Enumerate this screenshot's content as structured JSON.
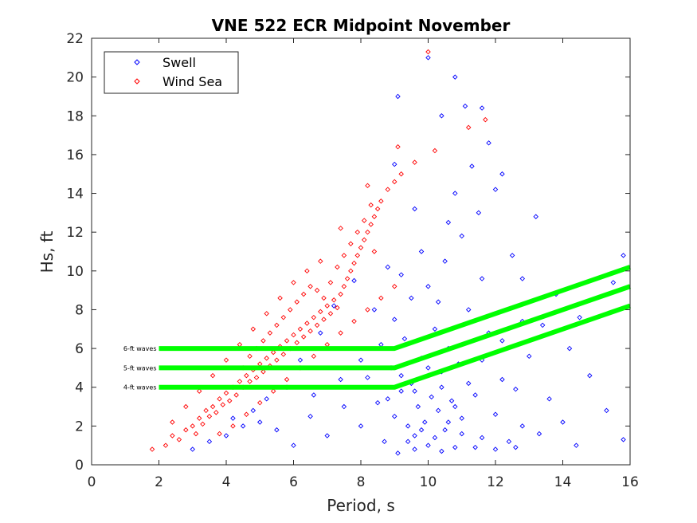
{
  "chart_data": {
    "type": "scatter",
    "title": "VNE 522 ECR Midpoint November",
    "xlabel": "Period, s",
    "ylabel": "Hs, ft",
    "xlim": [
      0,
      16
    ],
    "ylim": [
      0,
      22
    ],
    "xticks": [
      "0",
      "2",
      "4",
      "6",
      "8",
      "10",
      "12",
      "14",
      "16"
    ],
    "yticks": [
      "0",
      "2",
      "4",
      "6",
      "8",
      "10",
      "12",
      "14",
      "16",
      "18",
      "20",
      "22"
    ],
    "legend": {
      "placement": "top-left",
      "entries": [
        {
          "name": "Swell",
          "color": "#0000ff"
        },
        {
          "name": "Wind Sea",
          "color": "#ff0000"
        }
      ]
    },
    "series": [
      {
        "name": "Swell",
        "color": "#0000ff",
        "marker": "diamond",
        "points": [
          [
            3.0,
            0.8
          ],
          [
            3.5,
            1.2
          ],
          [
            4.0,
            1.5
          ],
          [
            4.5,
            2.0
          ],
          [
            5.0,
            2.2
          ],
          [
            5.5,
            1.8
          ],
          [
            6.0,
            1.0
          ],
          [
            6.5,
            2.5
          ],
          [
            7.0,
            1.5
          ],
          [
            7.5,
            3.0
          ],
          [
            8.0,
            2.0
          ],
          [
            8.2,
            4.5
          ],
          [
            8.5,
            3.2
          ],
          [
            8.7,
            1.2
          ],
          [
            8.9,
            5.0
          ],
          [
            9.0,
            2.5
          ],
          [
            9.1,
            0.6
          ],
          [
            9.2,
            3.8
          ],
          [
            9.3,
            6.5
          ],
          [
            9.4,
            2.0
          ],
          [
            9.5,
            4.2
          ],
          [
            9.6,
            1.5
          ],
          [
            9.7,
            3.0
          ],
          [
            9.8,
            5.5
          ],
          [
            9.9,
            2.2
          ],
          [
            10.0,
            1.0
          ],
          [
            10.1,
            3.5
          ],
          [
            10.2,
            7.0
          ],
          [
            10.3,
            2.8
          ],
          [
            10.4,
            4.8
          ],
          [
            10.5,
            1.8
          ],
          [
            10.6,
            6.0
          ],
          [
            10.7,
            3.3
          ],
          [
            10.8,
            0.9
          ],
          [
            10.9,
            5.2
          ],
          [
            11.0,
            2.4
          ],
          [
            11.2,
            8.0
          ],
          [
            11.4,
            3.6
          ],
          [
            11.6,
            1.4
          ],
          [
            11.8,
            6.8
          ],
          [
            12.0,
            2.6
          ],
          [
            12.2,
            4.4
          ],
          [
            12.4,
            1.2
          ],
          [
            12.6,
            3.9
          ],
          [
            12.8,
            2.0
          ],
          [
            13.0,
            5.6
          ],
          [
            13.3,
            1.6
          ],
          [
            13.6,
            3.4
          ],
          [
            14.0,
            2.2
          ],
          [
            14.4,
            1.0
          ],
          [
            14.8,
            4.6
          ],
          [
            15.3,
            2.8
          ],
          [
            15.8,
            1.3
          ],
          [
            8.6,
            6.2
          ],
          [
            9.0,
            7.5
          ],
          [
            9.5,
            8.6
          ],
          [
            10.0,
            9.2
          ],
          [
            10.5,
            10.5
          ],
          [
            11.0,
            11.8
          ],
          [
            11.5,
            13.0
          ],
          [
            12.0,
            14.2
          ],
          [
            8.4,
            8.0
          ],
          [
            9.2,
            9.8
          ],
          [
            9.8,
            11.0
          ],
          [
            10.6,
            12.5
          ],
          [
            11.3,
            15.4
          ],
          [
            11.8,
            16.6
          ],
          [
            12.2,
            15.0
          ],
          [
            9.6,
            13.2
          ],
          [
            10.8,
            14.0
          ],
          [
            9.0,
            15.5
          ],
          [
            8.8,
            10.2
          ],
          [
            10.3,
            8.4
          ],
          [
            11.6,
            9.6
          ],
          [
            12.5,
            10.8
          ],
          [
            13.2,
            12.8
          ],
          [
            13.8,
            8.8
          ],
          [
            14.5,
            7.6
          ],
          [
            15.5,
            9.4
          ],
          [
            15.8,
            10.8
          ],
          [
            12.8,
            9.6
          ],
          [
            13.4,
            7.2
          ],
          [
            14.2,
            6.0
          ],
          [
            11.1,
            18.5
          ],
          [
            11.6,
            18.4
          ],
          [
            10.8,
            20.0
          ],
          [
            10.0,
            21.0
          ],
          [
            9.1,
            19.0
          ],
          [
            10.4,
            18.0
          ],
          [
            7.8,
            9.5
          ],
          [
            7.2,
            8.2
          ],
          [
            6.8,
            6.8
          ],
          [
            6.2,
            5.4
          ],
          [
            5.8,
            4.0
          ],
          [
            5.2,
            3.4
          ],
          [
            4.8,
            2.8
          ],
          [
            4.2,
            2.4
          ],
          [
            6.6,
            3.6
          ],
          [
            7.4,
            4.4
          ],
          [
            8.0,
            5.4
          ],
          [
            9.4,
            1.2
          ],
          [
            9.8,
            1.8
          ],
          [
            10.2,
            1.4
          ],
          [
            10.6,
            2.2
          ],
          [
            11.0,
            1.6
          ],
          [
            9.6,
            0.8
          ],
          [
            10.4,
            0.7
          ],
          [
            11.4,
            0.9
          ],
          [
            12.0,
            0.8
          ],
          [
            12.6,
            0.9
          ],
          [
            8.8,
            3.4
          ],
          [
            9.2,
            4.6
          ],
          [
            9.6,
            3.8
          ],
          [
            10.0,
            5.0
          ],
          [
            10.4,
            4.0
          ],
          [
            10.8,
            3.0
          ],
          [
            11.2,
            4.2
          ],
          [
            11.6,
            5.4
          ],
          [
            12.2,
            6.4
          ],
          [
            12.8,
            7.4
          ]
        ]
      },
      {
        "name": "Wind Sea",
        "color": "#ff0000",
        "marker": "diamond",
        "points": [
          [
            1.8,
            0.8
          ],
          [
            2.2,
            1.0
          ],
          [
            2.4,
            1.5
          ],
          [
            2.6,
            1.3
          ],
          [
            2.8,
            1.8
          ],
          [
            3.0,
            2.0
          ],
          [
            3.1,
            1.6
          ],
          [
            3.2,
            2.4
          ],
          [
            3.3,
            2.1
          ],
          [
            3.4,
            2.8
          ],
          [
            3.5,
            2.5
          ],
          [
            3.6,
            3.0
          ],
          [
            3.7,
            2.7
          ],
          [
            3.8,
            3.4
          ],
          [
            3.9,
            3.1
          ],
          [
            4.0,
            3.7
          ],
          [
            4.1,
            3.3
          ],
          [
            4.2,
            4.0
          ],
          [
            4.3,
            3.6
          ],
          [
            4.4,
            4.3
          ],
          [
            4.5,
            4.0
          ],
          [
            4.6,
            4.6
          ],
          [
            4.7,
            4.3
          ],
          [
            4.8,
            4.9
          ],
          [
            4.9,
            4.5
          ],
          [
            5.0,
            5.2
          ],
          [
            5.1,
            4.8
          ],
          [
            5.2,
            5.5
          ],
          [
            5.3,
            5.1
          ],
          [
            5.4,
            5.8
          ],
          [
            5.5,
            5.4
          ],
          [
            5.6,
            6.1
          ],
          [
            5.7,
            5.7
          ],
          [
            5.8,
            6.4
          ],
          [
            5.9,
            6.0
          ],
          [
            6.0,
            6.7
          ],
          [
            6.1,
            6.3
          ],
          [
            6.2,
            7.0
          ],
          [
            6.3,
            6.6
          ],
          [
            6.4,
            7.3
          ],
          [
            6.5,
            6.9
          ],
          [
            6.6,
            7.6
          ],
          [
            6.7,
            7.2
          ],
          [
            6.8,
            7.9
          ],
          [
            6.9,
            7.5
          ],
          [
            7.0,
            8.2
          ],
          [
            7.1,
            7.8
          ],
          [
            7.2,
            8.5
          ],
          [
            7.3,
            8.1
          ],
          [
            7.4,
            8.8
          ],
          [
            7.5,
            9.2
          ],
          [
            7.6,
            9.6
          ],
          [
            7.7,
            10.0
          ],
          [
            7.8,
            10.4
          ],
          [
            7.9,
            10.8
          ],
          [
            8.0,
            11.2
          ],
          [
            8.1,
            11.6
          ],
          [
            8.2,
            12.0
          ],
          [
            8.3,
            12.4
          ],
          [
            8.4,
            12.8
          ],
          [
            8.5,
            13.2
          ],
          [
            8.6,
            13.6
          ],
          [
            8.8,
            14.2
          ],
          [
            9.0,
            14.6
          ],
          [
            9.2,
            15.0
          ],
          [
            9.6,
            15.6
          ],
          [
            10.2,
            16.2
          ],
          [
            11.2,
            17.4
          ],
          [
            11.7,
            17.8
          ],
          [
            10.0,
            21.3
          ],
          [
            9.1,
            16.4
          ],
          [
            8.2,
            14.4
          ],
          [
            7.4,
            12.2
          ],
          [
            6.8,
            10.5
          ],
          [
            6.4,
            10.0
          ],
          [
            6.0,
            9.4
          ],
          [
            5.6,
            8.6
          ],
          [
            5.2,
            7.8
          ],
          [
            4.8,
            7.0
          ],
          [
            4.4,
            6.2
          ],
          [
            4.0,
            5.4
          ],
          [
            3.6,
            4.6
          ],
          [
            3.2,
            3.8
          ],
          [
            2.8,
            3.0
          ],
          [
            2.4,
            2.2
          ],
          [
            3.8,
            1.6
          ],
          [
            4.2,
            2.0
          ],
          [
            4.6,
            2.6
          ],
          [
            5.0,
            3.2
          ],
          [
            5.4,
            3.8
          ],
          [
            5.8,
            4.4
          ],
          [
            6.2,
            5.0
          ],
          [
            6.6,
            5.6
          ],
          [
            7.0,
            6.2
          ],
          [
            7.4,
            6.8
          ],
          [
            7.8,
            7.4
          ],
          [
            8.2,
            8.0
          ],
          [
            8.6,
            8.6
          ],
          [
            9.0,
            9.2
          ],
          [
            8.4,
            11.0
          ],
          [
            4.5,
            5.0
          ],
          [
            4.7,
            5.6
          ],
          [
            4.9,
            6.0
          ],
          [
            5.1,
            6.4
          ],
          [
            5.3,
            6.8
          ],
          [
            5.5,
            7.2
          ],
          [
            5.7,
            7.6
          ],
          [
            5.9,
            8.0
          ],
          [
            6.1,
            8.4
          ],
          [
            6.3,
            8.8
          ],
          [
            6.5,
            9.2
          ],
          [
            6.7,
            9.0
          ],
          [
            6.9,
            8.6
          ],
          [
            7.1,
            9.4
          ],
          [
            7.3,
            10.2
          ],
          [
            7.5,
            10.8
          ],
          [
            7.7,
            11.4
          ],
          [
            7.9,
            12.0
          ],
          [
            8.1,
            12.6
          ],
          [
            8.3,
            13.4
          ]
        ]
      }
    ],
    "threshold_lines": [
      {
        "label": "6-ft waves",
        "points": [
          [
            2,
            6
          ],
          [
            9,
            6
          ],
          [
            16,
            10.2
          ]
        ]
      },
      {
        "label": "5-ft waves",
        "points": [
          [
            2,
            5
          ],
          [
            9,
            5
          ],
          [
            16,
            9.2
          ]
        ]
      },
      {
        "label": "4-ft waves",
        "points": [
          [
            2,
            4
          ],
          [
            9,
            4
          ],
          [
            16,
            8.2
          ]
        ]
      }
    ],
    "threshold_color": "#00ff00"
  }
}
